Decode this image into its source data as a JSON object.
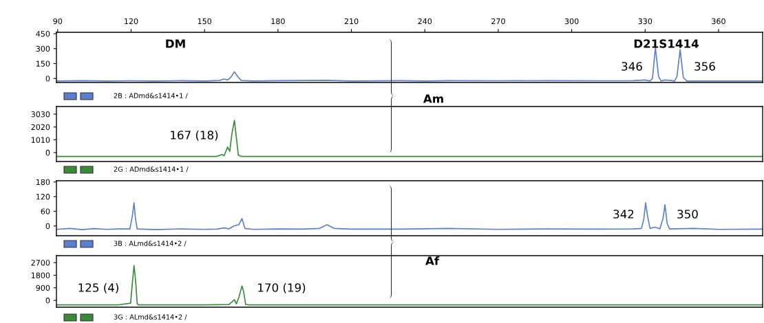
{
  "chart_data": [
    {
      "type": "line",
      "xlim": [
        89.5,
        378
      ],
      "xticks": [
        90,
        120,
        150,
        180,
        210,
        240,
        270,
        300,
        330,
        360
      ],
      "ylim": [
        -40,
        464
      ],
      "yticks": [
        0,
        150,
        300,
        450
      ],
      "series": [
        {
          "color": "#5b7fcc",
          "x": [
            89.5,
            100,
            110,
            120,
            130,
            140,
            150,
            156,
            158,
            159.5,
            161,
            162.2,
            163.5,
            165,
            170,
            180,
            190,
            200,
            205,
            210,
            230,
            240,
            250,
            270,
            290,
            310,
            325,
            330,
            332,
            333,
            334.2,
            335.5,
            336.5,
            338,
            340,
            342,
            343,
            344.3,
            345.6,
            347,
            360,
            378
          ],
          "values": [
            -25,
            -22,
            -25,
            -23,
            -25,
            -22,
            -25,
            -20,
            -5,
            -15,
            20,
            68,
            20,
            -20,
            -25,
            -22,
            -20,
            -18,
            -22,
            -25,
            -22,
            -25,
            -22,
            -23,
            -22,
            -23,
            -22,
            -15,
            -25,
            0,
            310,
            20,
            -25,
            -15,
            -18,
            -25,
            20,
            290,
            10,
            -25,
            -25,
            -25
          ]
        }
      ],
      "annotations": [
        "DM",
        "D21S1414",
        "346",
        "356",
        "2B : ADmd&s1414•1 /"
      ]
    },
    {
      "type": "line",
      "xlim": [
        89.5,
        378
      ],
      "ylim": [
        -700,
        3630
      ],
      "yticks": [
        0,
        1010,
        2020,
        3030
      ],
      "tick_labels": "y",
      "series": [
        {
          "color": "#3a8a3a",
          "x": [
            89.5,
            120,
            140,
            155,
            157.2,
            158,
            159.4,
            160.3,
            161.2,
            162.2,
            163,
            163.8,
            165,
            200,
            250,
            300,
            378
          ],
          "values": [
            -300,
            -300,
            -300,
            -300,
            -150,
            -250,
            440,
            100,
            1500,
            2540,
            1200,
            -200,
            -300,
            -300,
            -300,
            -300,
            -300
          ]
        }
      ],
      "annotations": [
        "Am",
        "167 (18)",
        "2G : ADmd&s1414•1 /"
      ]
    },
    {
      "type": "line",
      "xlim": [
        89.5,
        378
      ],
      "ylim": [
        -40,
        185
      ],
      "yticks": [
        0,
        60,
        120,
        180
      ],
      "tick_labels": "y",
      "series": [
        {
          "color": "#5b7fcc",
          "x": [
            89.5,
            95,
            100,
            105,
            110,
            115,
            119.5,
            120.5,
            121.2,
            121.8,
            122.5,
            130,
            140,
            150,
            155,
            158,
            160,
            162,
            164,
            165.3,
            166.5,
            170,
            180,
            190,
            197,
            200,
            203,
            210,
            230,
            250,
            270,
            290,
            310,
            325,
            328.5,
            329.5,
            330.2,
            331,
            332,
            334,
            336,
            337.3,
            338.1,
            339,
            340,
            350,
            360,
            378
          ],
          "values": [
            -14,
            -10,
            -15,
            -11,
            -14,
            -12,
            -12,
            40,
            95,
            30,
            -12,
            -15,
            -12,
            -14,
            -13,
            -8,
            -12,
            0,
            5,
            30,
            -10,
            -14,
            -12,
            -13,
            -10,
            5,
            -10,
            -13,
            -13,
            -10,
            -14,
            -12,
            -13,
            -12,
            -10,
            30,
            95,
            40,
            -10,
            -5,
            -12,
            30,
            87,
            10,
            -12,
            -10,
            -14,
            -13
          ]
        }
      ],
      "annotations": [
        "342",
        "350",
        "3B : ALmd&s1414•2 /"
      ]
    },
    {
      "type": "line",
      "xlim": [
        89.5,
        378
      ],
      "ylim": [
        -490,
        3200
      ],
      "yticks": [
        0,
        900,
        1800,
        2700
      ],
      "tick_labels": "y",
      "series": [
        {
          "color": "#3a8a3a",
          "x": [
            89.5,
            115,
            119.8,
            120.5,
            121.2,
            121.8,
            122.5,
            123,
            150,
            160,
            162.2,
            163,
            164,
            165.3,
            166,
            166.8,
            168,
            200,
            378
          ],
          "values": [
            -320,
            -320,
            -200,
            1200,
            2500,
            1500,
            -250,
            -320,
            -320,
            -300,
            50,
            -250,
            200,
            1030,
            600,
            -300,
            -320,
            -320,
            -320
          ]
        }
      ],
      "annotations": [
        "Af",
        "125 (4)",
        "170 (19)",
        "3G : ALmd&s1414•2 /"
      ]
    }
  ]
}
